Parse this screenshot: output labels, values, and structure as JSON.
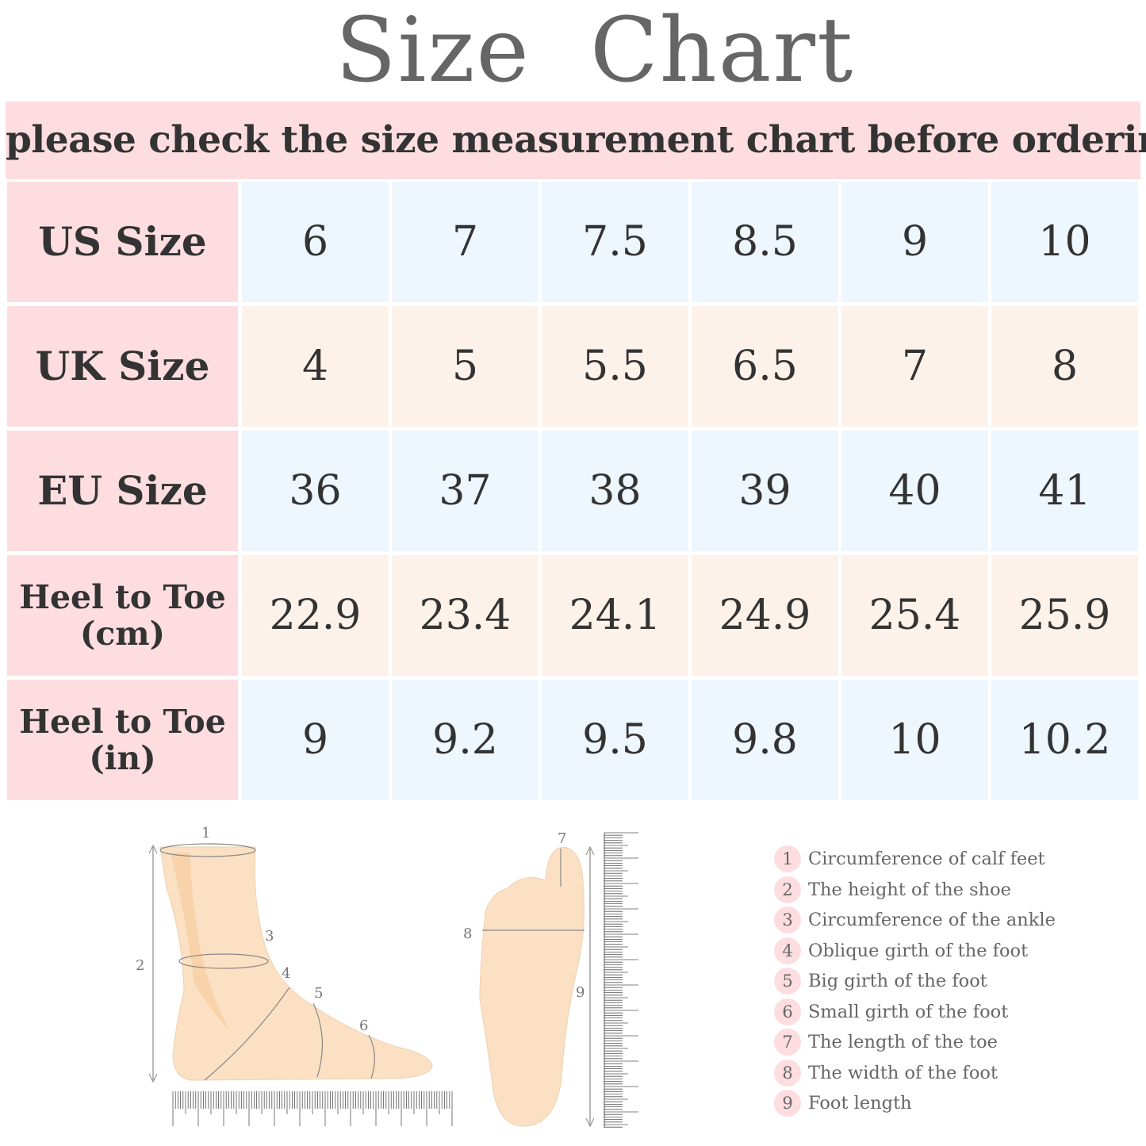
{
  "title": "Size  Chart",
  "banner": "please check the size measurement chart before ordering",
  "colors": {
    "label_bg": "#fddde0",
    "row_blue": "#eef6fe",
    "row_beige": "#fdf2e9",
    "text": "#333333",
    "title": "#666666"
  },
  "table": {
    "rows": [
      {
        "label": "US Size",
        "values": [
          "6",
          "7",
          "7.5",
          "8.5",
          "9",
          "10"
        ]
      },
      {
        "label": "UK Size",
        "values": [
          "4",
          "5",
          "5.5",
          "6.5",
          "7",
          "8"
        ]
      },
      {
        "label": "EU Size",
        "values": [
          "36",
          "37",
          "38",
          "39",
          "40",
          "41"
        ]
      },
      {
        "label": "Heel to Toe\n(cm)",
        "values": [
          "22.9",
          "23.4",
          "24.1",
          "24.9",
          "25.4",
          "25.9"
        ]
      },
      {
        "label": "Heel to Toe\n(in)",
        "values": [
          "9",
          "9.2",
          "9.5",
          "9.8",
          "10",
          "10.2"
        ]
      }
    ]
  },
  "diagram_markers": [
    "1",
    "2",
    "3",
    "4",
    "5",
    "6",
    "7",
    "8",
    "9"
  ],
  "legend": [
    {
      "num": "1",
      "text": "Circumference of calf feet"
    },
    {
      "num": "2",
      "text": "The height of the shoe"
    },
    {
      "num": "3",
      "text": "Circumference of the ankle"
    },
    {
      "num": "4",
      "text": "Oblique girth of the foot"
    },
    {
      "num": "5",
      "text": "Big girth of the foot"
    },
    {
      "num": "6",
      "text": "Small girth of the foot"
    },
    {
      "num": "7",
      "text": "The length of the toe"
    },
    {
      "num": "8",
      "text": "The width of the foot"
    },
    {
      "num": "9",
      "text": "Foot length"
    }
  ]
}
